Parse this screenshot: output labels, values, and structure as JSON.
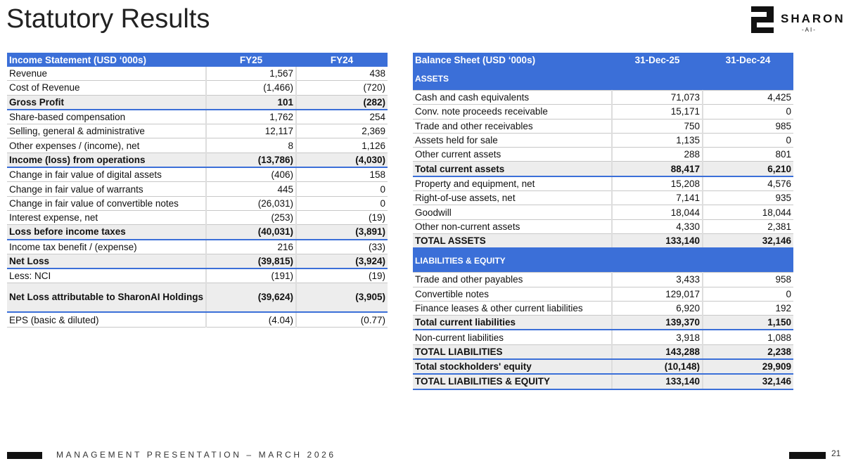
{
  "title": "Statutory Results",
  "logo": {
    "name": "SHARON",
    "sub": "-AI-"
  },
  "income": {
    "headers": [
      "Income Statement (USD ‘000s)",
      "FY25",
      "FY24"
    ],
    "rows": [
      {
        "label": "Revenue",
        "fy25": "1,567",
        "fy24": "438"
      },
      {
        "label": "Cost of Revenue",
        "fy25": "(1,466)",
        "fy24": "(720)"
      },
      {
        "label": "Gross Profit",
        "fy25": "101",
        "fy24": "(282)",
        "bold": true
      },
      {
        "label": "Share-based compensation",
        "fy25": "1,762",
        "fy24": "254"
      },
      {
        "label": "Selling, general & administrative",
        "fy25": "12,117",
        "fy24": "2,369"
      },
      {
        "label": "Other expenses / (income), net",
        "fy25": "8",
        "fy24": "1,126"
      },
      {
        "label": "Income (loss) from operations",
        "fy25": "(13,786)",
        "fy24": "(4,030)",
        "bold": true
      },
      {
        "label": "Change in fair value of digital assets",
        "fy25": "(406)",
        "fy24": "158"
      },
      {
        "label": "Change in fair value of warrants",
        "fy25": "445",
        "fy24": "0"
      },
      {
        "label": "Change in fair value of convertible notes",
        "fy25": "(26,031)",
        "fy24": "0"
      },
      {
        "label": "Interest expense, net",
        "fy25": "(253)",
        "fy24": "(19)"
      },
      {
        "label": "Loss before income taxes",
        "fy25": "(40,031)",
        "fy24": "(3,891)",
        "bold": true
      },
      {
        "label": "Income tax benefit / (expense)",
        "fy25": "216",
        "fy24": "(33)"
      },
      {
        "label": "Net Loss",
        "fy25": "(39,815)",
        "fy24": "(3,924)",
        "bold": true
      },
      {
        "label": "Less: NCI",
        "fy25": "(191)",
        "fy24": "(19)"
      },
      {
        "label": "Net Loss attributable to SharonAI Holdings",
        "fy25": "(39,624)",
        "fy24": "(3,905)",
        "bold": true,
        "tall": true
      },
      {
        "label": "EPS (basic & diluted)",
        "fy25": "(4.04)",
        "fy24": "(0.77)"
      }
    ]
  },
  "balance": {
    "headers": [
      "Balance Sheet (USD ‘000s)",
      "31-Dec-25",
      "31-Dec-24"
    ],
    "rows": [
      {
        "label": "ASSETS",
        "section": true
      },
      {
        "label": "Cash and cash equivalents",
        "a": "71,073",
        "b": "4,425"
      },
      {
        "label": "Conv. note proceeds receivable",
        "a": "15,171",
        "b": "0"
      },
      {
        "label": "Trade and other receivables",
        "a": "750",
        "b": "985"
      },
      {
        "label": "Assets held for sale",
        "a": "1,135",
        "b": "0"
      },
      {
        "label": "Other current assets",
        "a": "288",
        "b": "801"
      },
      {
        "label": "Total current assets",
        "a": "88,417",
        "b": "6,210",
        "bold": true
      },
      {
        "label": "Property and equipment, net",
        "a": "15,208",
        "b": "4,576"
      },
      {
        "label": "Right-of-use assets, net",
        "a": "7,141",
        "b": "935"
      },
      {
        "label": "Goodwill",
        "a": "18,044",
        "b": "18,044"
      },
      {
        "label": "Other non-current assets",
        "a": "4,330",
        "b": "2,381"
      },
      {
        "label": "TOTAL ASSETS",
        "a": "133,140",
        "b": "32,146",
        "bold": true
      },
      {
        "label": "LIABILITIES & EQUITY",
        "section": true
      },
      {
        "label": "Trade and other payables",
        "a": "3,433",
        "b": "958"
      },
      {
        "label": "Convertible notes",
        "a": "129,017",
        "b": "0"
      },
      {
        "label": "Finance leases & other current liabilities",
        "a": "6,920",
        "b": "192"
      },
      {
        "label": "Total current liabilities",
        "a": "139,370",
        "b": "1,150",
        "bold": true
      },
      {
        "label": "Non-current liabilities",
        "a": "3,918",
        "b": "1,088"
      },
      {
        "label": "TOTAL LIABILITIES",
        "a": "143,288",
        "b": "2,238",
        "bold": true
      },
      {
        "label": "Total stockholders' equity",
        "a": "(10,148)",
        "b": "29,909",
        "bold": true
      },
      {
        "label": "TOTAL LIABILITIES & EQUITY",
        "a": "133,140",
        "b": "32,146",
        "bold": true
      }
    ]
  },
  "footer": {
    "text": "MANAGEMENT PRESENTATION – MARCH 2026",
    "page": "21"
  }
}
